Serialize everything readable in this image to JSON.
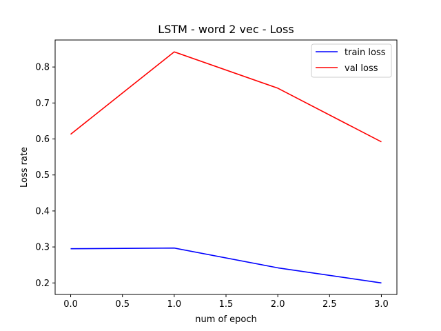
{
  "chart_data": {
    "type": "line",
    "title": "LSTM - word 2 vec - Loss",
    "xlabel": "num of epoch",
    "ylabel": "Loss rate",
    "xlim": [
      -0.15,
      3.15
    ],
    "ylim": [
      0.168,
      0.875
    ],
    "xticks": [
      "0.0",
      "0.5",
      "1.0",
      "1.5",
      "2.0",
      "2.5",
      "3.0"
    ],
    "yticks": [
      "0.2",
      "0.3",
      "0.4",
      "0.5",
      "0.6",
      "0.7",
      "0.8"
    ],
    "grid": false,
    "legend_position": "top-right",
    "x": [
      0,
      1,
      2,
      3
    ],
    "series": [
      {
        "name": "train loss",
        "color": "#0000ff",
        "values": [
          0.295,
          0.297,
          0.242,
          0.2
        ]
      },
      {
        "name": "val loss",
        "color": "#ff0000",
        "values": [
          0.613,
          0.842,
          0.741,
          0.592
        ]
      }
    ]
  }
}
